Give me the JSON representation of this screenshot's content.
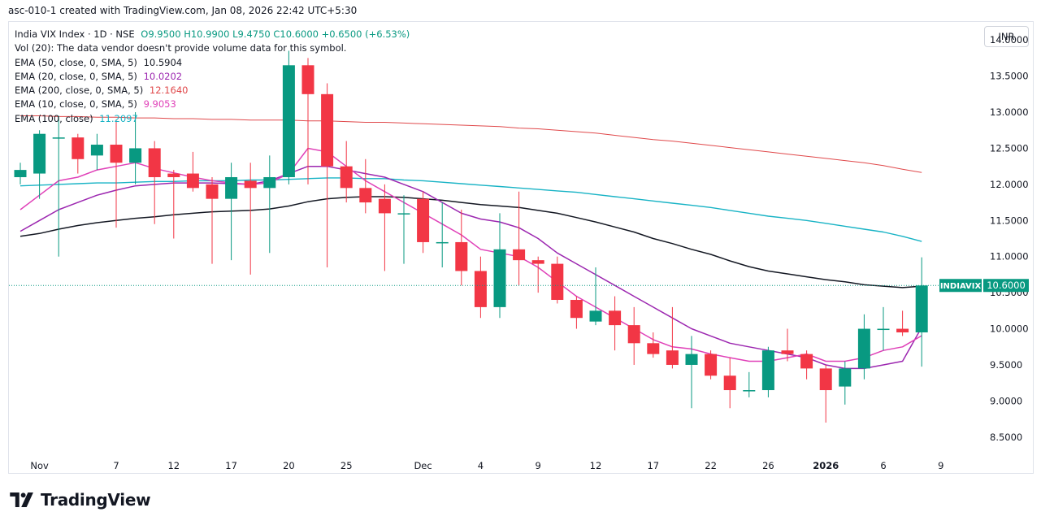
{
  "header": {
    "text": "asc-010-1 created with TradingView.com, Jan 08, 2026 22:42 UTC+5:30"
  },
  "legend": {
    "symbol": "India VIX Index · 1D · NSE",
    "ohlc": "O9.9500  H10.9900  L9.4750  C10.6000  +0.6500 (+6.53%)",
    "volume": "Vol (20): The data vendor doesn't provide volume data for this symbol.",
    "ema": [
      {
        "label": "EMA (50, close, 0, SMA, 5)",
        "value": "10.5904",
        "color": "#131722"
      },
      {
        "label": "EMA (20, close, 0, SMA, 5)",
        "value": "10.0202",
        "color": "#9c27b0"
      },
      {
        "label": "EMA (200, close, 0, SMA, 5)",
        "value": "12.1640",
        "color": "#e0494b"
      },
      {
        "label": "EMA (10, close, 0, SMA, 5)",
        "value": "9.9053",
        "color": "#e040b8"
      },
      {
        "label": "EMA (100, close)",
        "value": "11.2097",
        "color": "#18b3c5"
      }
    ]
  },
  "currency": "INR",
  "brand": {
    "name": "TradingView"
  },
  "chart_data": {
    "type": "candlestick",
    "symbol": "INDIAVIX",
    "last_price": "10.6000",
    "ylim": [
      8.25,
      14.25
    ],
    "y_ticks": [
      "8.5000",
      "9.0000",
      "9.5000",
      "10.0000",
      "10.5000",
      "11.0000",
      "11.5000",
      "12.0000",
      "12.5000",
      "13.0000",
      "13.5000",
      "14.0000"
    ],
    "x_tick_labels": [
      {
        "label": "Nov",
        "idx": 1,
        "bold": false
      },
      {
        "label": "7",
        "idx": 5,
        "bold": false
      },
      {
        "label": "12",
        "idx": 8,
        "bold": false
      },
      {
        "label": "17",
        "idx": 11,
        "bold": false
      },
      {
        "label": "20",
        "idx": 14,
        "bold": false
      },
      {
        "label": "25",
        "idx": 17,
        "bold": false
      },
      {
        "label": "Dec",
        "idx": 21,
        "bold": false
      },
      {
        "label": "4",
        "idx": 24,
        "bold": false
      },
      {
        "label": "9",
        "idx": 27,
        "bold": false
      },
      {
        "label": "12",
        "idx": 30,
        "bold": false
      },
      {
        "label": "17",
        "idx": 33,
        "bold": false
      },
      {
        "label": "22",
        "idx": 36,
        "bold": false
      },
      {
        "label": "26",
        "idx": 39,
        "bold": false
      },
      {
        "label": "2026",
        "idx": 42,
        "bold": true
      },
      {
        "label": "6",
        "idx": 45,
        "bold": false
      },
      {
        "label": "9",
        "idx": 48,
        "bold": false
      }
    ],
    "candles": [
      [
        12.1,
        12.3,
        12.0,
        12.2
      ],
      [
        12.15,
        12.75,
        11.8,
        12.7
      ],
      [
        12.65,
        12.95,
        11.0,
        12.65
      ],
      [
        12.65,
        12.7,
        12.15,
        12.35
      ],
      [
        12.4,
        12.7,
        12.2,
        12.55
      ],
      [
        12.55,
        12.9,
        11.4,
        12.3
      ],
      [
        12.3,
        13.0,
        12.0,
        12.5
      ],
      [
        12.5,
        12.6,
        11.45,
        12.1
      ],
      [
        12.15,
        12.2,
        11.25,
        12.1
      ],
      [
        12.15,
        12.45,
        11.9,
        11.95
      ],
      [
        12.0,
        12.1,
        10.9,
        11.8
      ],
      [
        11.8,
        12.3,
        10.95,
        12.1
      ],
      [
        12.05,
        12.3,
        10.75,
        11.95
      ],
      [
        11.95,
        12.4,
        11.05,
        12.1
      ],
      [
        12.1,
        13.85,
        12.0,
        13.65
      ],
      [
        13.65,
        13.75,
        12.0,
        13.25
      ],
      [
        13.25,
        13.4,
        10.85,
        12.25
      ],
      [
        12.25,
        12.6,
        11.75,
        11.95
      ],
      [
        11.95,
        12.35,
        11.6,
        11.75
      ],
      [
        11.8,
        12.0,
        10.8,
        11.6
      ],
      [
        11.6,
        11.85,
        10.9,
        11.6
      ],
      [
        11.8,
        11.9,
        11.05,
        11.2
      ],
      [
        11.2,
        11.75,
        10.85,
        11.2
      ],
      [
        11.2,
        11.65,
        10.6,
        10.8
      ],
      [
        10.8,
        11.0,
        10.15,
        10.3
      ],
      [
        10.3,
        11.6,
        10.15,
        11.1
      ],
      [
        11.1,
        11.9,
        10.6,
        10.95
      ],
      [
        10.95,
        11.0,
        10.5,
        10.9
      ],
      [
        10.9,
        11.0,
        10.35,
        10.4
      ],
      [
        10.4,
        10.45,
        10.0,
        10.15
      ],
      [
        10.1,
        10.85,
        10.05,
        10.25
      ],
      [
        10.25,
        10.45,
        9.7,
        10.05
      ],
      [
        10.05,
        10.3,
        9.5,
        9.8
      ],
      [
        9.8,
        9.95,
        9.6,
        9.65
      ],
      [
        9.7,
        10.3,
        9.45,
        9.5
      ],
      [
        9.5,
        9.9,
        8.9,
        9.65
      ],
      [
        9.65,
        9.7,
        9.3,
        9.35
      ],
      [
        9.35,
        9.6,
        8.9,
        9.15
      ],
      [
        9.15,
        9.4,
        9.05,
        9.15
      ],
      [
        9.15,
        9.75,
        9.05,
        9.7
      ],
      [
        9.7,
        10.0,
        9.55,
        9.65
      ],
      [
        9.65,
        9.7,
        9.3,
        9.45
      ],
      [
        9.45,
        9.5,
        8.7,
        9.15
      ],
      [
        9.2,
        9.55,
        8.95,
        9.45
      ],
      [
        9.45,
        10.2,
        9.3,
        10.0
      ],
      [
        10.0,
        10.3,
        9.7,
        10.0
      ],
      [
        10.0,
        10.25,
        9.9,
        9.95
      ],
      [
        9.95,
        10.99,
        9.475,
        10.6
      ]
    ],
    "ema_lines": [
      {
        "name": "EMA 200",
        "color": "#e0494b",
        "width": 1,
        "start": 0,
        "values": [
          12.95,
          12.95,
          12.94,
          12.94,
          12.93,
          12.93,
          12.92,
          12.92,
          12.91,
          12.91,
          12.9,
          12.9,
          12.89,
          12.89,
          12.89,
          12.88,
          12.88,
          12.87,
          12.86,
          12.86,
          12.85,
          12.84,
          12.83,
          12.82,
          12.81,
          12.8,
          12.78,
          12.77,
          12.75,
          12.73,
          12.71,
          12.68,
          12.65,
          12.62,
          12.6,
          12.57,
          12.54,
          12.51,
          12.48,
          12.45,
          12.42,
          12.39,
          12.36,
          12.33,
          12.3,
          12.26,
          12.21,
          12.164
        ]
      },
      {
        "name": "EMA 100",
        "color": "#18b3c5",
        "width": 1.4,
        "start": 0,
        "values": [
          11.98,
          11.99,
          12.0,
          12.01,
          12.02,
          12.02,
          12.03,
          12.04,
          12.04,
          12.05,
          12.05,
          12.05,
          12.06,
          12.06,
          12.07,
          12.08,
          12.09,
          12.09,
          12.08,
          12.08,
          12.06,
          12.05,
          12.03,
          12.01,
          11.99,
          11.97,
          11.95,
          11.93,
          11.91,
          11.89,
          11.86,
          11.83,
          11.8,
          11.77,
          11.74,
          11.71,
          11.68,
          11.64,
          11.6,
          11.56,
          11.53,
          11.5,
          11.46,
          11.42,
          11.38,
          11.34,
          11.28,
          11.2097
        ]
      },
      {
        "name": "EMA 50",
        "color": "#131722",
        "width": 1.5,
        "start": 0,
        "values": [
          11.28,
          11.32,
          11.38,
          11.43,
          11.47,
          11.5,
          11.53,
          11.55,
          11.58,
          11.6,
          11.62,
          11.63,
          11.64,
          11.66,
          11.7,
          11.76,
          11.8,
          11.82,
          11.83,
          11.83,
          11.82,
          11.8,
          11.78,
          11.75,
          11.72,
          11.7,
          11.68,
          11.64,
          11.6,
          11.54,
          11.48,
          11.41,
          11.34,
          11.25,
          11.18,
          11.1,
          11.03,
          10.94,
          10.86,
          10.8,
          10.76,
          10.72,
          10.68,
          10.65,
          10.61,
          10.59,
          10.57,
          10.5904
        ]
      },
      {
        "name": "EMA 20",
        "color": "#9c27b0",
        "width": 1.5,
        "start": 0,
        "values": [
          11.35,
          11.5,
          11.65,
          11.75,
          11.85,
          11.92,
          11.98,
          12.0,
          12.02,
          12.02,
          12.02,
          12.01,
          12.0,
          12.05,
          12.15,
          12.25,
          12.25,
          12.2,
          12.15,
          12.1,
          12.0,
          11.9,
          11.75,
          11.6,
          11.52,
          11.48,
          11.4,
          11.25,
          11.05,
          10.9,
          10.75,
          10.6,
          10.45,
          10.3,
          10.15,
          10.0,
          9.9,
          9.8,
          9.75,
          9.7,
          9.65,
          9.6,
          9.5,
          9.45,
          9.45,
          9.5,
          9.55,
          10.0202
        ]
      },
      {
        "name": "EMA 10",
        "color": "#e040b8",
        "width": 1.5,
        "start": 0,
        "values": [
          11.65,
          11.85,
          12.05,
          12.1,
          12.2,
          12.25,
          12.3,
          12.22,
          12.16,
          12.1,
          12.05,
          12.02,
          12.0,
          12.02,
          12.15,
          12.5,
          12.45,
          12.25,
          12.05,
          11.9,
          11.75,
          11.6,
          11.45,
          11.3,
          11.1,
          11.05,
          11.0,
          10.85,
          10.65,
          10.45,
          10.3,
          10.15,
          10.0,
          9.85,
          9.75,
          9.72,
          9.65,
          9.6,
          9.55,
          9.55,
          9.6,
          9.65,
          9.55,
          9.55,
          9.6,
          9.7,
          9.75,
          9.9053
        ]
      }
    ]
  }
}
